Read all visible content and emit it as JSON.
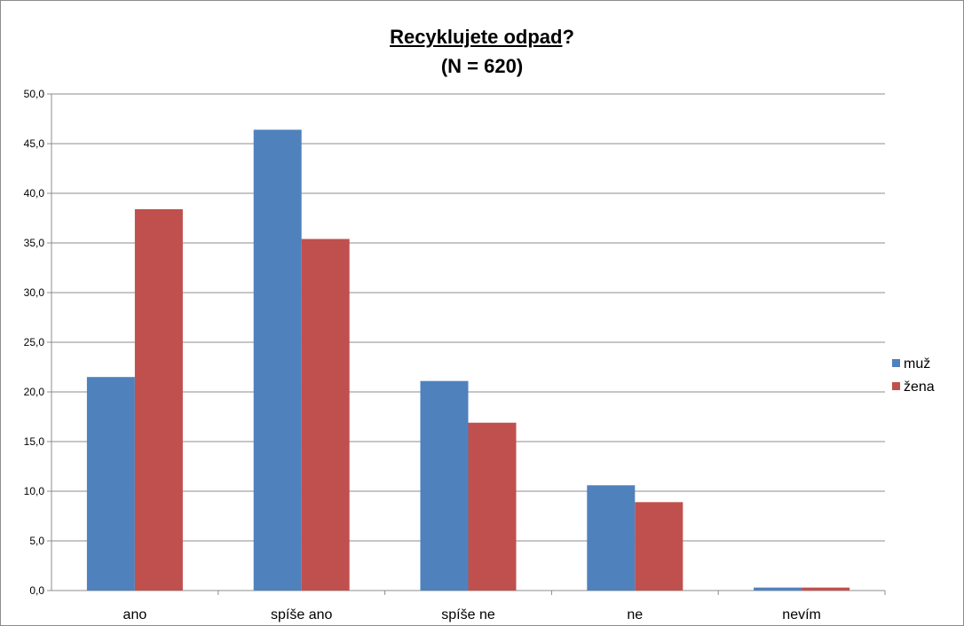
{
  "chart_data": {
    "type": "bar",
    "title": "Recyklujete odpad?",
    "title_underlined_part": "Recyklujete odpad",
    "title_tail": "?",
    "subtitle": "(N = 620)",
    "categories": [
      "ano",
      "spíše ano",
      "spíše ne",
      "ne",
      "nevím"
    ],
    "series": [
      {
        "name": "muž",
        "color": "#4f81bd",
        "values": [
          21.5,
          46.4,
          21.1,
          10.6,
          0.3
        ]
      },
      {
        "name": "žena",
        "color": "#c0504d",
        "values": [
          38.4,
          35.4,
          16.9,
          8.9,
          0.3
        ]
      }
    ],
    "ylim": [
      0,
      50
    ],
    "yticks": [
      "0,0",
      "5,0",
      "10,0",
      "15,0",
      "20,0",
      "25,0",
      "30,0",
      "35,0",
      "40,0",
      "45,0",
      "50,0"
    ],
    "xlabel": "",
    "ylabel": "",
    "grid": true,
    "legend_position": "right"
  }
}
